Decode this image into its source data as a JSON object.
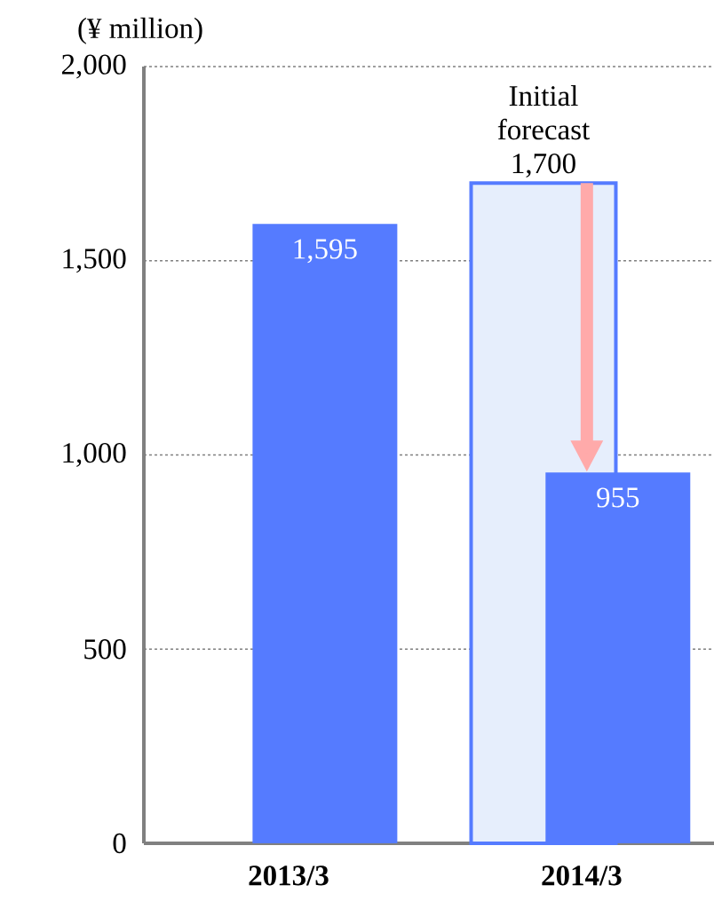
{
  "chart_data": {
    "type": "bar",
    "ylabel": "(¥ million)",
    "categories": [
      "2013/3",
      "2014/3"
    ],
    "series": [
      {
        "name": "Initial forecast",
        "color": "#e6eefc",
        "values": [
          null,
          1700
        ],
        "value_labels": [
          null,
          "1,700"
        ]
      },
      {
        "color": "#557bff",
        "values": [
          1595,
          955
        ],
        "value_labels": [
          "1,595",
          "955"
        ]
      }
    ],
    "ylim": [
      0,
      2000
    ],
    "yticks": [
      0,
      500,
      {
        "value": 1000,
        "label": "1,000"
      },
      {
        "value": 1500,
        "label": "1,500"
      },
      {
        "value": 2000,
        "label": "2,000"
      }
    ],
    "grid": "y"
  }
}
